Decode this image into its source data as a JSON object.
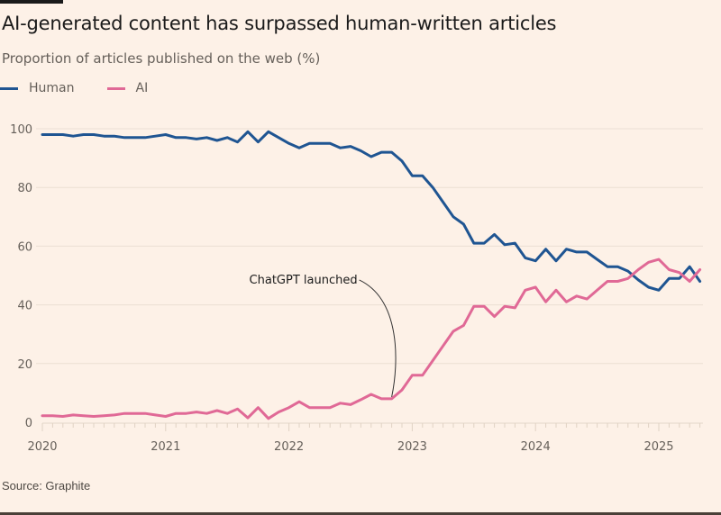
{
  "title": "AI-generated content has surpassed human-written articles",
  "subtitle": "Proportion of articles published on the web (%)",
  "source": "Source: Graphite",
  "colors": {
    "human": "#1f5592",
    "ai": "#e06996",
    "background": "#fdf1e7",
    "grid": "#ece0d4"
  },
  "legend": [
    {
      "label": "Human",
      "color": "#1f5592"
    },
    {
      "label": "AI",
      "color": "#e06996"
    }
  ],
  "chart_data": {
    "type": "line",
    "title": "AI-generated content has surpassed human-written articles",
    "ylabel": "Proportion of articles published on the web (%)",
    "xlabel": "",
    "xlim": [
      "2020-01",
      "2025-05"
    ],
    "ylim": [
      0,
      100
    ],
    "grid": true,
    "legend_placement": "top-left",
    "x_tick_labels": [
      "2020",
      "2021",
      "2022",
      "2023",
      "2024",
      "2025"
    ],
    "y_tick_labels": [
      "0",
      "20",
      "40",
      "60",
      "80",
      "100"
    ],
    "y_ticks": [
      0,
      20,
      40,
      60,
      80,
      100
    ],
    "x": [
      "2020-01",
      "2020-02",
      "2020-03",
      "2020-04",
      "2020-05",
      "2020-06",
      "2020-07",
      "2020-08",
      "2020-09",
      "2020-10",
      "2020-11",
      "2020-12",
      "2021-01",
      "2021-02",
      "2021-03",
      "2021-04",
      "2021-05",
      "2021-06",
      "2021-07",
      "2021-08",
      "2021-09",
      "2021-10",
      "2021-11",
      "2021-12",
      "2022-01",
      "2022-02",
      "2022-03",
      "2022-04",
      "2022-05",
      "2022-06",
      "2022-07",
      "2022-08",
      "2022-09",
      "2022-10",
      "2022-11",
      "2022-12",
      "2023-01",
      "2023-02",
      "2023-03",
      "2023-04",
      "2023-05",
      "2023-06",
      "2023-07",
      "2023-08",
      "2023-09",
      "2023-10",
      "2023-11",
      "2023-12",
      "2024-01",
      "2024-02",
      "2024-03",
      "2024-04",
      "2024-05",
      "2024-06",
      "2024-07",
      "2024-08",
      "2024-09",
      "2024-10",
      "2024-11",
      "2024-12",
      "2025-01",
      "2025-02",
      "2025-03",
      "2025-04",
      "2025-05"
    ],
    "series": [
      {
        "name": "Human",
        "color": "#1f5592",
        "values": [
          98,
          98,
          98,
          97.5,
          98,
          98,
          97.5,
          97.5,
          97,
          97,
          97,
          97.5,
          98,
          97,
          97,
          96.5,
          97,
          96,
          97,
          95.5,
          99,
          95.5,
          99,
          97,
          95,
          93.5,
          95,
          95,
          95,
          93.5,
          94,
          92.5,
          90.5,
          92,
          92,
          89,
          84,
          84,
          80,
          75,
          70,
          67.5,
          61,
          61,
          64,
          60.5,
          61,
          56,
          55,
          59,
          55,
          59,
          58,
          58,
          55.5,
          53,
          53,
          51.5,
          48.5,
          46,
          45,
          49,
          49,
          53,
          48
        ]
      },
      {
        "name": "AI",
        "color": "#e06996",
        "values": [
          2.2,
          2.2,
          2,
          2.5,
          2.2,
          2,
          2.2,
          2.5,
          3,
          3,
          3,
          2.5,
          2,
          3,
          3,
          3.5,
          3,
          4,
          3,
          4.5,
          1.5,
          5,
          1.3,
          3.5,
          5,
          7,
          5,
          5,
          5,
          6.5,
          6,
          7.7,
          9.5,
          8,
          8,
          11,
          16,
          16,
          21,
          26,
          31,
          33,
          39.5,
          39.5,
          36,
          39.5,
          39,
          45,
          46,
          41,
          45,
          41,
          43,
          42,
          45,
          48,
          48,
          49,
          52,
          54.5,
          55.5,
          52,
          51,
          48,
          52
        ]
      }
    ],
    "annotations": [
      {
        "text": "ChatGPT launched",
        "x": "2022-11",
        "series": "AI"
      }
    ]
  }
}
